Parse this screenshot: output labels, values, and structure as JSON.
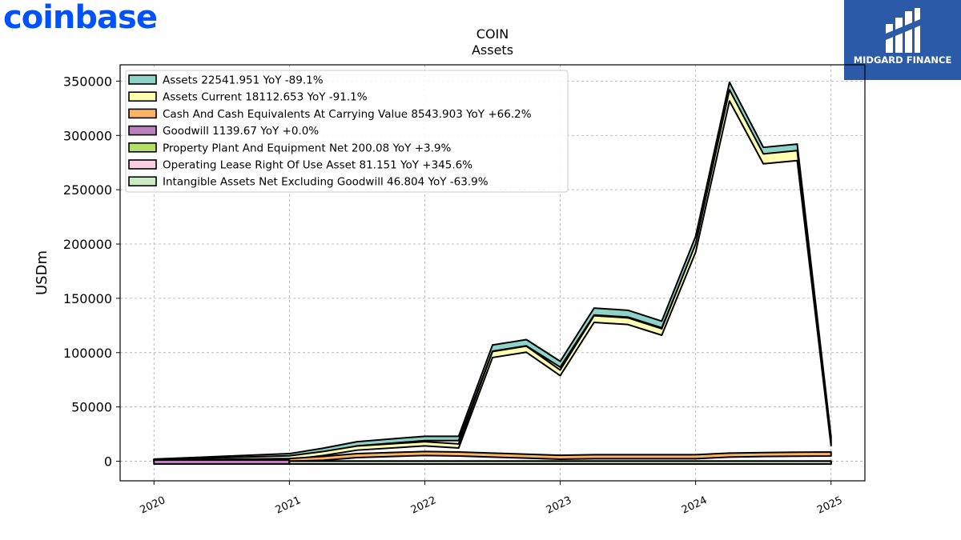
{
  "brand": {
    "logo_text": "coinbase",
    "logo_color": "#0052ff"
  },
  "watermark": {
    "text": "MIDGARD FINANCE",
    "bg_color": "#2b5aa9"
  },
  "chart_data": {
    "type": "area",
    "title": "COIN",
    "subtitle": "Assets",
    "ylabel": "USDm",
    "ylim": [
      -18000,
      365000
    ],
    "xlim": [
      2019.75,
      2025.25
    ],
    "yticks": [
      0,
      50000,
      100000,
      150000,
      200000,
      250000,
      300000,
      350000
    ],
    "ytick_labels": [
      "0",
      "50000",
      "100000",
      "150000",
      "200000",
      "250000",
      "300000",
      "350000"
    ],
    "xticks": [
      2020,
      2021,
      2022,
      2023,
      2024,
      2025
    ],
    "xtick_labels": [
      "2020",
      "2021",
      "2022",
      "2023",
      "2024",
      "2025"
    ],
    "grid": true,
    "legend_position": "top-left",
    "series": [
      {
        "name": "Assets",
        "legend": "Assets  22541.951 YoY -89.1%",
        "color": "#8dd3c7",
        "x": [
          2020.0,
          2021.0,
          2021.25,
          2021.5,
          2022.0,
          2022.25,
          2022.5,
          2022.75,
          2023.0,
          2023.25,
          2023.5,
          2023.75,
          2024.0,
          2024.25,
          2024.5,
          2024.75,
          2025.0
        ],
        "values": [
          2000,
          7000,
          12000,
          18000,
          23000,
          23000,
          107000,
          112000,
          92000,
          141000,
          139000,
          129000,
          207000,
          349000,
          289000,
          292000,
          22541.951
        ]
      },
      {
        "name": "Assets Current",
        "legend": "Assets Current  18112.653 YoY -91.1%",
        "color": "#ffffb3",
        "x": [
          2020.0,
          2021.0,
          2021.25,
          2021.5,
          2022.0,
          2022.25,
          2022.5,
          2022.75,
          2023.0,
          2023.25,
          2023.5,
          2023.75,
          2024.0,
          2024.25,
          2024.5,
          2024.75,
          2025.0
        ],
        "values": [
          1500,
          5000,
          9000,
          14000,
          18000,
          16000,
          101000,
          106000,
          84000,
          134000,
          132000,
          122000,
          200000,
          342000,
          283000,
          286000,
          18112.653
        ]
      },
      {
        "name": "Cash And Cash Equivalents At Carrying Value",
        "legend": "Cash And Cash Equivalents At Carrying Value  8543.903 YoY +66.2%",
        "color": "#fdb462",
        "x": [
          2020.0,
          2021.0,
          2021.25,
          2021.5,
          2022.0,
          2022.25,
          2022.5,
          2022.75,
          2023.0,
          2023.25,
          2023.5,
          2023.75,
          2024.0,
          2024.25,
          2024.5,
          2024.75,
          2025.0
        ],
        "values": [
          1000,
          2500,
          4500,
          7000,
          9000,
          8500,
          7500,
          6500,
          5500,
          6000,
          6000,
          6000,
          6000,
          7500,
          8000,
          8300,
          8543.903
        ]
      },
      {
        "name": "Goodwill",
        "legend": "Goodwill  1139.67 YoY +0.0%",
        "color": "#bc80bd",
        "x": [
          2020.0,
          2021.0
        ],
        "values": [
          1139.67,
          1139.67
        ]
      },
      {
        "name": "Property Plant And Equipment Net",
        "legend": "Property Plant And Equipment Net  200.08 YoY +3.9%",
        "color": "#b3de69",
        "x": [
          2021.0,
          2025.0
        ],
        "values": [
          200,
          200.08
        ]
      },
      {
        "name": "Operating Lease Right Of Use Asset",
        "legend": "Operating Lease Right Of Use Asset  81.151 YoY +345.6%",
        "color": "#fccde5",
        "x": [
          2021.0,
          2025.0
        ],
        "values": [
          80,
          81.151
        ]
      },
      {
        "name": "Intangible Assets Net Excluding Goodwill",
        "legend": "Intangible Assets Net Excluding Goodwill  46.804 YoY -63.9%",
        "color": "#ccebc5",
        "x": [
          2021.0,
          2025.0
        ],
        "values": [
          47,
          46.804
        ]
      }
    ]
  }
}
